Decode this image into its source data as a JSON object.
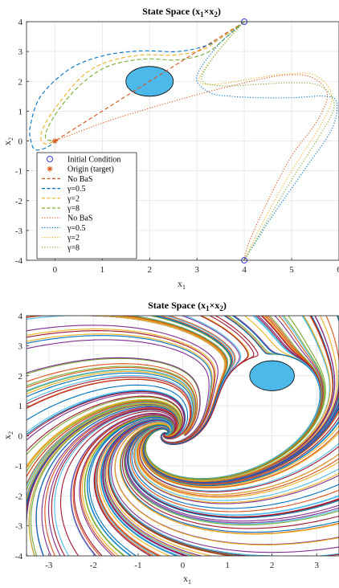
{
  "chart_data": [
    {
      "type": "line",
      "title": "State Space (x1×x2)",
      "title_parts": {
        "main": "State Space (x",
        "s1": "1",
        "times": "×x",
        "s2": "2",
        "close": ")"
      },
      "xlabel": {
        "base": "x",
        "sub": "1"
      },
      "ylabel": {
        "base": "x",
        "sub": "2"
      },
      "xlim": [
        -0.6,
        6
      ],
      "ylim": [
        -4,
        4
      ],
      "xticks": [
        "0",
        "1",
        "2",
        "3",
        "4",
        "5",
        "6"
      ],
      "yticks": [
        "-4",
        "-3",
        "-2",
        "-1",
        "0",
        "1",
        "2",
        "3",
        "4"
      ],
      "grid": true,
      "obstacle": {
        "center": [
          2.0,
          2.0
        ],
        "radii": [
          0.5,
          0.5
        ],
        "color": "#4db8ea"
      },
      "markers": {
        "initial_conditions": [
          [
            4,
            4
          ],
          [
            4,
            -4
          ]
        ],
        "origin": [
          0,
          0
        ]
      },
      "legend": {
        "location": "bottom-left",
        "entries": [
          {
            "label": "Initial Condition",
            "kind": "circle",
            "color": "#3a3ad6"
          },
          {
            "label": "Origin (target)",
            "kind": "asterisk",
            "color": "#d95319"
          },
          {
            "label": "No BaS",
            "kind": "dash",
            "color": "#d95319"
          },
          {
            "label": "γ=0.5",
            "kind": "dash",
            "color": "#0072bd"
          },
          {
            "label": "γ=2",
            "kind": "dash",
            "color": "#edb120"
          },
          {
            "label": "γ=8",
            "kind": "dash",
            "color": "#77ac30"
          },
          {
            "label": "No BaS",
            "kind": "dot",
            "color": "#d95319"
          },
          {
            "label": "γ=0.5",
            "kind": "dot",
            "color": "#0072bd"
          },
          {
            "label": "γ=2",
            "kind": "dot",
            "color": "#edb120"
          },
          {
            "label": "γ=8",
            "kind": "dot",
            "color": "#77ac30"
          }
        ]
      },
      "series": [
        {
          "name": "No BaS",
          "style": "dash",
          "color": "#d95319",
          "points": [
            [
              4,
              4
            ],
            [
              3,
              3.0
            ],
            [
              2,
              2.0
            ],
            [
              1,
              1.0
            ],
            [
              0,
              0
            ]
          ]
        },
        {
          "name": "γ=0.5",
          "style": "dash",
          "color": "#0072bd",
          "points": [
            [
              4,
              4
            ],
            [
              3.6,
              3.55
            ],
            [
              3.2,
              3.2
            ],
            [
              2.6,
              3.0
            ],
            [
              1.8,
              3.02
            ],
            [
              1.0,
              2.85
            ],
            [
              0.3,
              2.4
            ],
            [
              -0.3,
              1.5
            ],
            [
              -0.52,
              0.5
            ],
            [
              -0.5,
              -0.05
            ],
            [
              -0.4,
              -0.3
            ],
            [
              -0.15,
              -0.2
            ],
            [
              0,
              0
            ]
          ]
        },
        {
          "name": "γ=2",
          "style": "dash",
          "color": "#edb120",
          "points": [
            [
              4,
              4
            ],
            [
              3.5,
              3.45
            ],
            [
              3.1,
              3.05
            ],
            [
              2.5,
              2.88
            ],
            [
              1.8,
              2.88
            ],
            [
              1.1,
              2.65
            ],
            [
              0.6,
              2.2
            ],
            [
              0.15,
              1.4
            ],
            [
              -0.2,
              0.6
            ],
            [
              -0.3,
              0.1
            ],
            [
              -0.2,
              -0.1
            ],
            [
              0,
              0
            ]
          ]
        },
        {
          "name": "γ=8",
          "style": "dash",
          "color": "#77ac30",
          "points": [
            [
              4,
              4
            ],
            [
              3.6,
              3.45
            ],
            [
              3.2,
              2.95
            ],
            [
              2.6,
              2.72
            ],
            [
              1.9,
              2.75
            ],
            [
              1.2,
              2.55
            ],
            [
              0.7,
              2.1
            ],
            [
              0.25,
              1.4
            ],
            [
              -0.1,
              0.6
            ],
            [
              -0.2,
              0.1
            ],
            [
              0,
              0
            ]
          ]
        },
        {
          "name": "No BaS",
          "style": "dot",
          "color": "#d95319",
          "points": [
            [
              0,
              0
            ],
            [
              1.0,
              0.6
            ],
            [
              2.0,
              1.1
            ],
            [
              3.0,
              1.55
            ],
            [
              4.0,
              1.95
            ],
            [
              4.8,
              2.2
            ],
            [
              5.4,
              2.15
            ],
            [
              5.75,
              1.6
            ],
            [
              5.55,
              0.7
            ],
            [
              5.0,
              -0.5
            ],
            [
              4.5,
              -2.0
            ],
            [
              4.1,
              -3.4
            ],
            [
              4,
              -4
            ]
          ]
        },
        {
          "name": "γ=0.5",
          "style": "dot",
          "color": "#0072bd",
          "points": [
            [
              4,
              4
            ],
            [
              3.5,
              3.3
            ],
            [
              3.1,
              2.5
            ],
            [
              3.0,
              2.0
            ],
            [
              3.3,
              1.6
            ],
            [
              3.7,
              1.5
            ],
            [
              4.3,
              1.45
            ],
            [
              5.0,
              1.45
            ],
            [
              5.7,
              1.5
            ],
            [
              5.95,
              1.3
            ],
            [
              5.85,
              0.4
            ],
            [
              5.3,
              -0.9
            ],
            [
              4.6,
              -2.5
            ],
            [
              4,
              -4
            ]
          ]
        },
        {
          "name": "γ=2",
          "style": "dot",
          "color": "#edb120",
          "points": [
            [
              4,
              4
            ],
            [
              3.6,
              3.3
            ],
            [
              3.2,
              2.5
            ],
            [
              3.05,
              2.0
            ],
            [
              3.4,
              1.9
            ],
            [
              4.2,
              2.1
            ],
            [
              4.9,
              2.25
            ],
            [
              5.5,
              2.2
            ],
            [
              5.85,
              1.5
            ],
            [
              5.6,
              0.5
            ],
            [
              5.0,
              -1.0
            ],
            [
              4.4,
              -2.7
            ],
            [
              4,
              -4
            ]
          ]
        },
        {
          "name": "γ=8",
          "style": "dot",
          "color": "#77ac30",
          "points": [
            [
              4,
              4
            ],
            [
              3.65,
              3.4
            ],
            [
              3.3,
              2.7
            ],
            [
              3.1,
              2.05
            ],
            [
              3.5,
              1.85
            ],
            [
              4.3,
              1.9
            ],
            [
              5.0,
              1.95
            ],
            [
              5.6,
              1.85
            ],
            [
              5.9,
              1.2
            ],
            [
              5.6,
              0.2
            ],
            [
              5.0,
              -1.3
            ],
            [
              4.4,
              -2.9
            ],
            [
              4,
              -4
            ]
          ]
        }
      ]
    },
    {
      "type": "line",
      "title": "State Space (x1×x2)",
      "title_parts": {
        "main": "State Space (x",
        "s1": "1",
        "times": "×x",
        "s2": "2",
        "close": ")"
      },
      "xlabel": {
        "base": "x",
        "sub": "1"
      },
      "ylabel": {
        "base": "x",
        "sub": "2"
      },
      "xlim": [
        -3.5,
        3.5
      ],
      "ylim": [
        -4,
        4
      ],
      "xticks": [
        "-3",
        "-2",
        "-1",
        "0",
        "1",
        "2",
        "3"
      ],
      "yticks": [
        "-4",
        "-3",
        "-2",
        "-1",
        "0",
        "1",
        "2",
        "3",
        "4"
      ],
      "grid": true,
      "obstacle": {
        "center": [
          2.0,
          2.0
        ],
        "radii": [
          0.5,
          0.5
        ],
        "color": "#4db8ea"
      },
      "palette": [
        "#0072bd",
        "#d95319",
        "#edb120",
        "#7e2f8e",
        "#77ac30",
        "#4dbeee",
        "#a2142f"
      ],
      "streamlines": "many trajectories converging to the origin around the obstacle"
    }
  ]
}
